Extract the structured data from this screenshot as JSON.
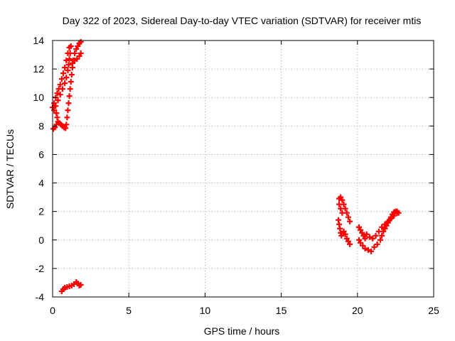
{
  "chart_data": {
    "type": "scatter",
    "title": "Day 322 of 2023, Sidereal Day-to-day VTEC variation (SDTVAR) for receiver mtis",
    "xlabel": "GPS time / hours",
    "ylabel": "SDTVAR / TECUs",
    "xlim": [
      0,
      25
    ],
    "ylim": [
      -4,
      14
    ],
    "x_ticks": [
      "0",
      "5",
      "10",
      "15",
      "20",
      "25"
    ],
    "y_ticks": [
      "-4",
      "-2",
      "0",
      "2",
      "4",
      "6",
      "8",
      "10",
      "12",
      "14"
    ],
    "grid": true,
    "marker": "+",
    "color": "#ff0000",
    "series": [
      {
        "points": [
          [
            0.0,
            9.3
          ],
          [
            0.1,
            9.6
          ],
          [
            0.2,
            10.0
          ],
          [
            0.3,
            10.3
          ],
          [
            0.4,
            10.6
          ],
          [
            0.5,
            10.9
          ],
          [
            0.6,
            11.3
          ],
          [
            0.7,
            11.7
          ],
          [
            0.8,
            12.1
          ],
          [
            0.9,
            12.6
          ],
          [
            1.0,
            13.1
          ],
          [
            1.1,
            13.5
          ],
          [
            0.1,
            9.1
          ],
          [
            0.2,
            9.4
          ],
          [
            0.35,
            9.8
          ],
          [
            0.5,
            10.2
          ],
          [
            0.65,
            10.6
          ],
          [
            0.8,
            11.0
          ],
          [
            0.9,
            11.4
          ],
          [
            1.0,
            11.9
          ],
          [
            1.05,
            12.3
          ],
          [
            1.1,
            12.7
          ],
          [
            1.15,
            13.1
          ],
          [
            1.2,
            13.6
          ],
          [
            0.05,
            7.8
          ],
          [
            0.15,
            7.9
          ],
          [
            0.25,
            8.1
          ],
          [
            0.35,
            8.3
          ],
          [
            0.45,
            8.2
          ],
          [
            0.55,
            8.1
          ],
          [
            0.65,
            8.0
          ],
          [
            0.75,
            7.9
          ],
          [
            0.85,
            7.85
          ],
          [
            0.3,
            8.6
          ],
          [
            0.25,
            8.9
          ],
          [
            0.9,
            8.1
          ],
          [
            0.95,
            8.6
          ],
          [
            1.0,
            9.1
          ],
          [
            1.05,
            9.6
          ],
          [
            1.1,
            10.1
          ],
          [
            1.15,
            10.6
          ],
          [
            1.2,
            11.1
          ],
          [
            1.25,
            11.6
          ],
          [
            1.3,
            12.1
          ],
          [
            1.35,
            12.6
          ],
          [
            1.45,
            13.1
          ],
          [
            1.55,
            13.4
          ],
          [
            1.65,
            13.6
          ],
          [
            1.75,
            13.8
          ],
          [
            1.85,
            13.9
          ],
          [
            1.3,
            12.4
          ],
          [
            1.45,
            12.6
          ],
          [
            1.6,
            12.7
          ],
          [
            1.75,
            12.9
          ],
          [
            1.85,
            13.1
          ],
          [
            0.6,
            -3.6
          ],
          [
            0.7,
            -3.45
          ],
          [
            0.8,
            -3.35
          ],
          [
            0.95,
            -3.3
          ],
          [
            1.1,
            -3.25
          ],
          [
            1.25,
            -3.2
          ],
          [
            1.4,
            -3.1
          ],
          [
            1.55,
            -2.95
          ],
          [
            1.65,
            -3.05
          ],
          [
            1.75,
            -3.2
          ],
          [
            1.85,
            -3.15
          ]
        ]
      },
      {
        "points": [
          [
            18.8,
            2.9
          ],
          [
            18.9,
            3.0
          ],
          [
            19.0,
            2.8
          ],
          [
            19.1,
            2.5
          ],
          [
            19.2,
            2.2
          ],
          [
            19.3,
            1.9
          ],
          [
            19.4,
            1.6
          ],
          [
            19.5,
            1.3
          ],
          [
            18.8,
            2.5
          ],
          [
            18.9,
            2.2
          ],
          [
            19.0,
            1.9
          ],
          [
            18.75,
            1.4
          ],
          [
            18.8,
            1.1
          ],
          [
            18.85,
            0.8
          ],
          [
            18.9,
            0.5
          ],
          [
            18.95,
            0.3
          ],
          [
            19.1,
            0.6
          ],
          [
            19.2,
            0.4
          ],
          [
            19.3,
            0.1
          ],
          [
            19.4,
            -0.1
          ],
          [
            19.5,
            -0.3
          ],
          [
            20.1,
            0.9
          ],
          [
            20.2,
            0.7
          ],
          [
            20.3,
            0.5
          ],
          [
            20.4,
            0.3
          ],
          [
            20.5,
            0.1
          ],
          [
            20.1,
            0.0
          ],
          [
            20.2,
            -0.2
          ],
          [
            20.35,
            -0.4
          ],
          [
            20.5,
            -0.6
          ],
          [
            20.7,
            -0.7
          ],
          [
            20.9,
            -0.8
          ],
          [
            21.1,
            -0.5
          ],
          [
            21.3,
            -0.3
          ],
          [
            21.5,
            0.0
          ],
          [
            21.6,
            0.3
          ],
          [
            21.7,
            0.6
          ],
          [
            21.8,
            0.8
          ],
          [
            21.9,
            1.0
          ],
          [
            22.0,
            1.2
          ],
          [
            22.1,
            1.4
          ],
          [
            22.2,
            1.6
          ],
          [
            22.3,
            1.8
          ],
          [
            22.4,
            1.95
          ],
          [
            22.5,
            2.0
          ],
          [
            22.6,
            2.0
          ],
          [
            22.7,
            1.9
          ],
          [
            20.6,
            0.4
          ],
          [
            20.8,
            0.2
          ],
          [
            21.0,
            0.1
          ],
          [
            21.2,
            0.3
          ],
          [
            21.4,
            0.6
          ],
          [
            21.6,
            0.9
          ],
          [
            21.8,
            1.1
          ],
          [
            22.0,
            1.3
          ],
          [
            22.2,
            1.5
          ],
          [
            22.4,
            1.7
          ],
          [
            22.6,
            1.9
          ]
        ]
      }
    ]
  }
}
